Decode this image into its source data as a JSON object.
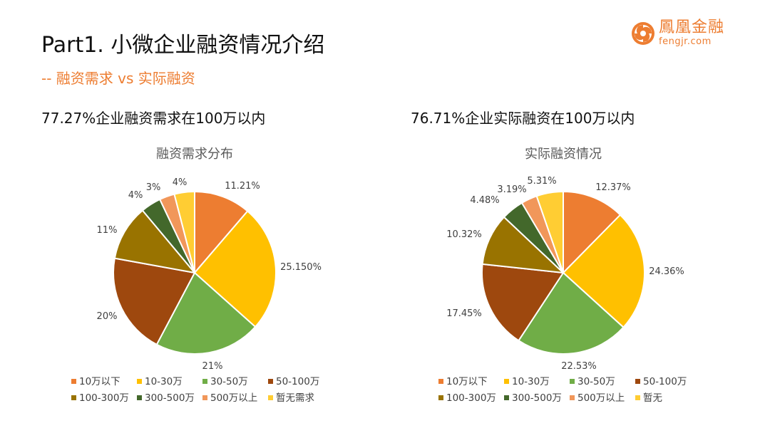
{
  "header": {
    "title": "Part1. 小微企业融资情况介绍",
    "subtitle": "-- 融资需求 vs 实际融资",
    "logo_cn": "鳳凰金融",
    "logo_en": "fengjr.com",
    "accent": "#ED7D31"
  },
  "headlines": {
    "left": "77.27%企业融资需求在100万以内",
    "right": "76.71%企业实际融资在100万以内"
  },
  "chart_data": [
    {
      "type": "pie",
      "title": "融资需求分布",
      "categories": [
        "10万以下",
        "10-30万",
        "30-50万",
        "50-100万",
        "100-300万",
        "300-500万",
        "500万以上",
        "暂无需求"
      ],
      "values": [
        11.21,
        25.15,
        21,
        20,
        11,
        4,
        3,
        4
      ],
      "data_labels": [
        "11.21%",
        "25.150%",
        "21%",
        "20%",
        "11%",
        "4%",
        "3%",
        "4%"
      ],
      "colors": [
        "#ED7D31",
        "#FFC000",
        "#70AD47",
        "#9E480E",
        "#997300",
        "#43682B",
        "#F1975A",
        "#FFCD33"
      ],
      "legend": "bottom"
    },
    {
      "type": "pie",
      "title": "实际融资情况",
      "categories": [
        "10万以下",
        "10-30万",
        "30-50万",
        "50-100万",
        "100-300万",
        "300-500万",
        "500万以上",
        "暂无"
      ],
      "values": [
        12.37,
        24.36,
        22.53,
        17.45,
        10.32,
        4.48,
        3.19,
        5.31
      ],
      "data_labels": [
        "12.37%",
        "24.36%",
        "22.53%",
        "17.45%",
        "10.32%",
        "4.48%",
        "3.19%",
        "5.31%"
      ],
      "colors": [
        "#ED7D31",
        "#FFC000",
        "#70AD47",
        "#9E480E",
        "#997300",
        "#43682B",
        "#F1975A",
        "#FFCD33"
      ],
      "legend": "bottom"
    }
  ]
}
